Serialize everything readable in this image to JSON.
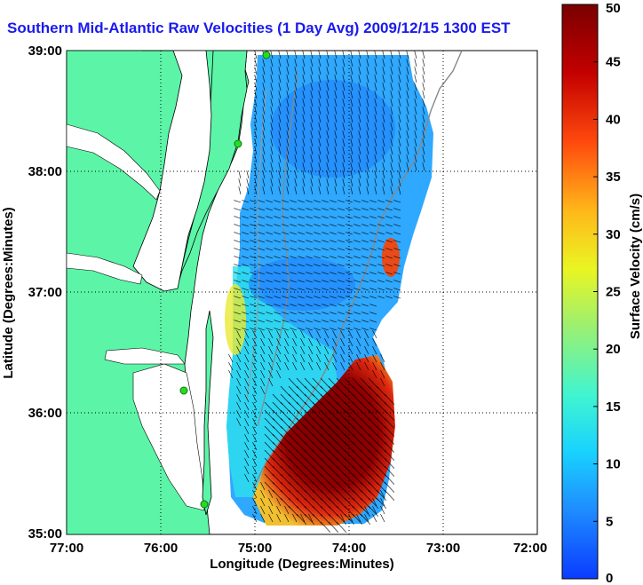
{
  "title": "Southern Mid-Atlantic Raw Velocities (1 Day Avg) 2009/12/15 1300 EST",
  "x_axis": {
    "label": "Longitude (Degrees:Minutes)",
    "ticks": [
      "77:00",
      "76:00",
      "75:00",
      "74:00",
      "73:00",
      "72:00"
    ]
  },
  "y_axis": {
    "label": "Latitude (Degrees:Minutes)",
    "ticks": [
      "39:00",
      "38:00",
      "37:00",
      "36:00",
      "35:00"
    ]
  },
  "colorbar": {
    "label": "Surface Velocity (cm/s)",
    "ticks": [
      "0",
      "5",
      "10",
      "15",
      "20",
      "25",
      "30",
      "35",
      "40",
      "45",
      "50"
    ],
    "range": [
      0,
      50
    ]
  },
  "colors": {
    "land": "#5cf5a8",
    "water_bg": "#ffffff",
    "title": "#1a1aee",
    "site_marker": "#22dd22"
  },
  "map": {
    "lon_range": [
      -77,
      -72
    ],
    "lat_range": [
      35,
      39
    ],
    "grid": true
  }
}
